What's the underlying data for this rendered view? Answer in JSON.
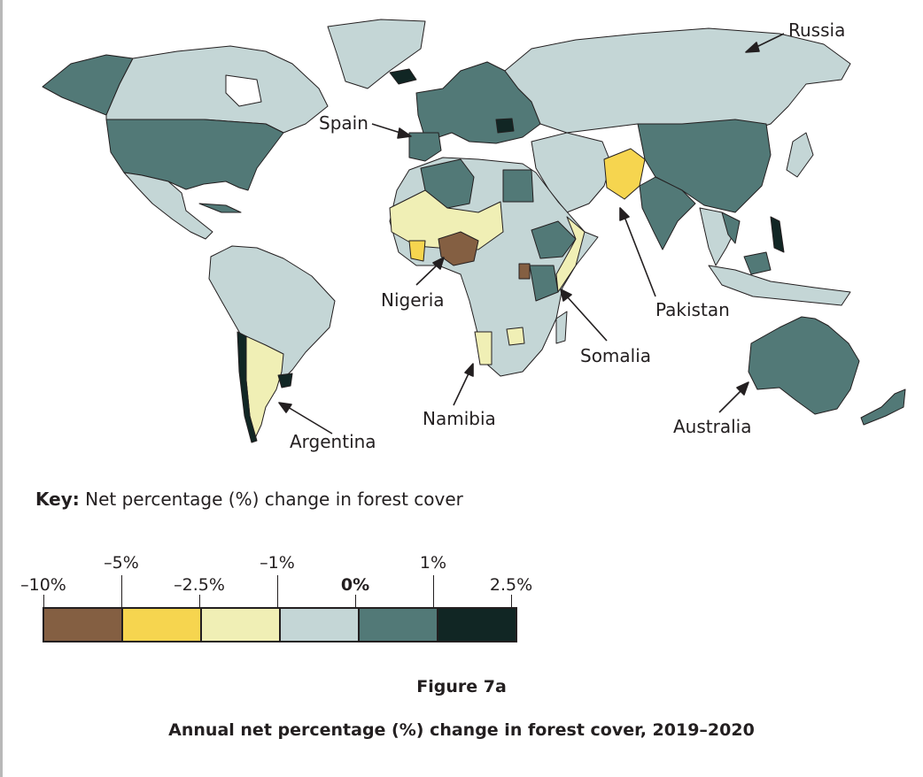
{
  "labels": {
    "russia": "Russia",
    "spain": "Spain",
    "nigeria": "Nigeria",
    "pakistan": "Pakistan",
    "somalia": "Somalia",
    "namibia": "Namibia",
    "australia": "Australia",
    "argentina": "Argentina"
  },
  "key": {
    "bold": "Key:",
    "text": " Net percentage (%) change in forest cover",
    "ticks_upper": [
      "–5%",
      "–1%",
      "1%"
    ],
    "ticks_lower": [
      "–10%",
      "–2.5%",
      "0%",
      "2.5%"
    ],
    "classes": [
      {
        "range": "-10% to -5%",
        "color": "#845f42"
      },
      {
        "range": "-5% to -2.5%",
        "color": "#f6d54f"
      },
      {
        "range": "-2.5% to -1%",
        "color": "#f0efb5"
      },
      {
        "range": "-1% to 0%",
        "color": "#c4d6d6"
      },
      {
        "range": "0% to 1%",
        "color": "#527977"
      },
      {
        "range": "1% to 2.5%",
        "color": "#112624"
      }
    ]
  },
  "figure": {
    "number": "Figure 7a",
    "title": "Annual net percentage (%) change in forest cover, 2019–2020"
  }
}
